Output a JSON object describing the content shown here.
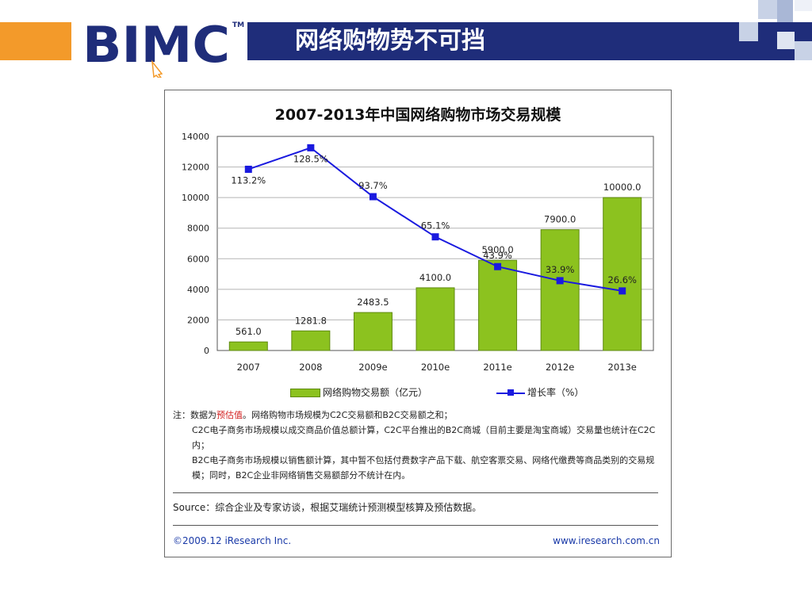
{
  "slide": {
    "title": "网络购物势不可挡",
    "logo_text": "BIMC",
    "logo_tm": "TM"
  },
  "colors": {
    "orange": "#f39a2a",
    "navy": "#1f2d7a",
    "bar": "#8cc21f",
    "line": "#1a1adf"
  },
  "chart_data": {
    "type": "bar",
    "title": "2007-2013年中国网络购物市场交易规模",
    "categories": [
      "2007",
      "2008",
      "2009e",
      "2010e",
      "2011e",
      "2012e",
      "2013e"
    ],
    "series": [
      {
        "name": "网络购物交易额（亿元）",
        "type": "bar",
        "values": [
          561.0,
          1281.8,
          2483.5,
          4100.0,
          5900.0,
          7900.0,
          10000.0
        ],
        "labels": [
          "561.0",
          "1281.8",
          "2483.5",
          "4100.0",
          "5900.0",
          "7900.0",
          "10000.0"
        ]
      },
      {
        "name": "增长率（%）",
        "type": "line",
        "values": [
          113.2,
          128.5,
          93.7,
          65.1,
          43.9,
          33.9,
          26.6
        ],
        "labels": [
          "113.2%",
          "128.5%",
          "93.7%",
          "65.1%",
          "43.9%",
          "33.9%",
          "26.6%"
        ]
      }
    ],
    "ylim": [
      0,
      14000
    ],
    "yticks": [
      0,
      2000,
      4000,
      6000,
      8000,
      10000,
      12000,
      14000
    ],
    "grid": true,
    "legend": "bottom"
  },
  "notes": {
    "prefix": "注：数据为",
    "highlight": "预估值",
    "rest": "。网络购物市场规模为C2C交易额和B2C交易额之和；",
    "line2": "C2C电子商务市场规模以成交商品价值总额计算，C2C平台推出的B2C商城（目前主要是淘宝商城）交易量也统计在C2C内；",
    "line3": "B2C电子商务市场规模以销售额计算，其中暂不包括付费数字产品下载、航空客票交易、网络代缴费等商品类别的交易规模；同时，B2C企业非网络销售交易额部分不统计在内。"
  },
  "source": "Source：综合企业及专家访谈，根据艾瑞统计预测模型核算及预估数据。",
  "copyright": "©2009.12 iResearch Inc.",
  "website": "www.iresearch.com.cn"
}
